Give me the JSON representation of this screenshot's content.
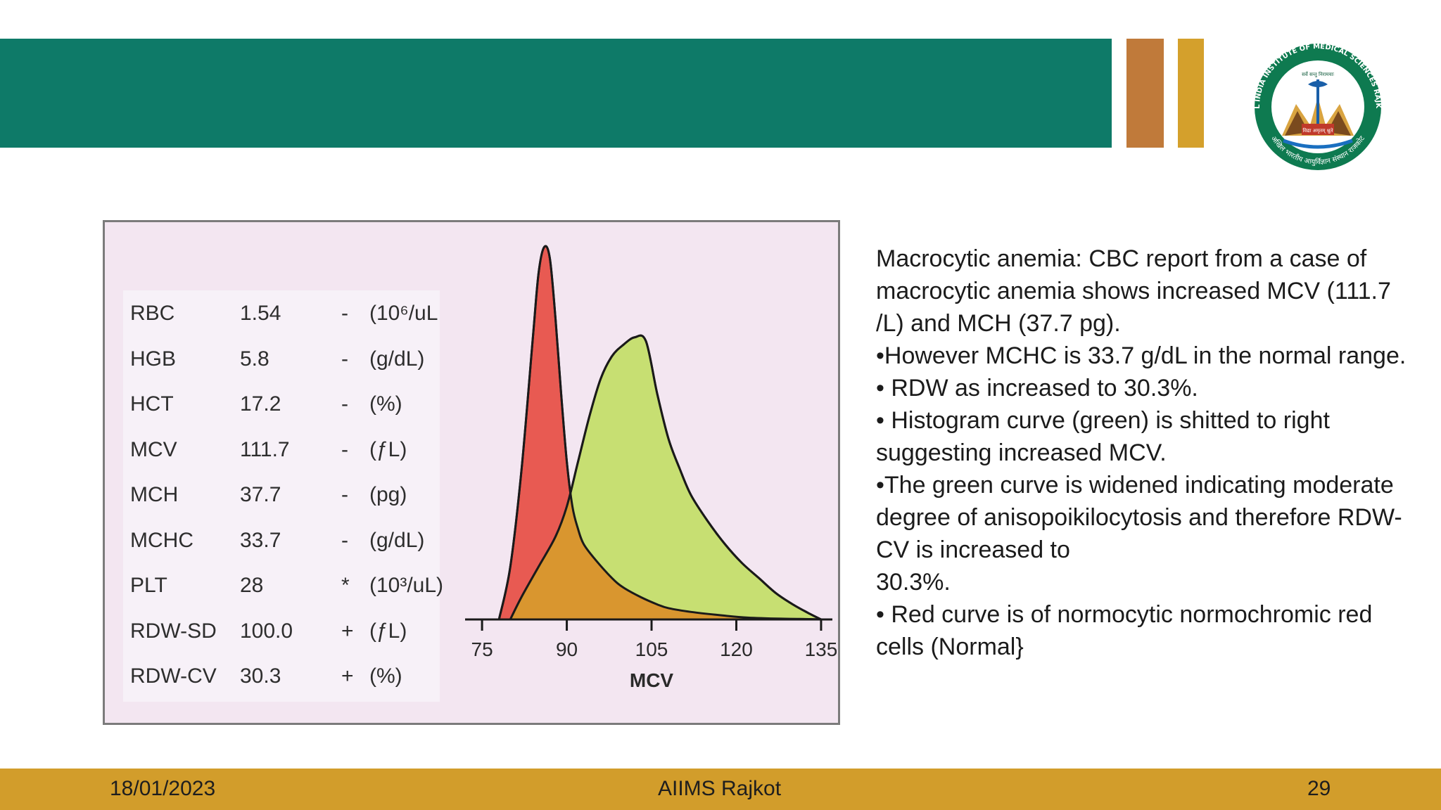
{
  "header": {
    "band_color": "#0e7a68",
    "accent_colors": [
      "#c07a3a",
      "#d4a02c"
    ],
    "logo": {
      "icon": "aiims-rajkot-seal-logo",
      "ring_text": "ALL INDIA INSTITUTE OF MEDICAL SCIENCES RAJKOT",
      "motto_top": "सर्वे सन्तु निरामयाः",
      "motto_book": "विद्या अमृतम् श्नुते",
      "hindi_name": "अखिल भारतीय आयुर्विज्ञान संस्थान राजकोट"
    }
  },
  "cbc_table": {
    "rows": [
      {
        "name": "RBC",
        "value": "1.54",
        "flag": "-",
        "unit": "(10⁶/uL"
      },
      {
        "name": "HGB",
        "value": "5.8",
        "flag": "-",
        "unit": "(g/dL)"
      },
      {
        "name": "HCT",
        "value": "17.2",
        "flag": "-",
        "unit": "(%)"
      },
      {
        "name": "MCV",
        "value": "111.7",
        "flag": "-",
        "unit": "(ƒL)"
      },
      {
        "name": "MCH",
        "value": "37.7",
        "flag": "-",
        "unit": "(pg)"
      },
      {
        "name": "MCHC",
        "value": "33.7",
        "flag": "-",
        "unit": "(g/dL)"
      },
      {
        "name": "PLT",
        "value": "28",
        "flag": "*",
        "unit": "(10³/uL)"
      },
      {
        "name": "RDW-SD",
        "value": "100.0",
        "flag": "+",
        "unit": "(ƒL)"
      },
      {
        "name": "RDW-CV",
        "value": "30.3",
        "flag": "+",
        "unit": "(%)"
      }
    ]
  },
  "chart_data": {
    "type": "area",
    "title": "",
    "xlabel": "MCV",
    "ylabel": "",
    "x_ticks": [
      75,
      90,
      105,
      120,
      135
    ],
    "xlim": [
      72,
      137
    ],
    "ylim": [
      0,
      100
    ],
    "grid": false,
    "series": [
      {
        "color": "#e85a52",
        "x": [
          78,
          80,
          82,
          84,
          85,
          86,
          87,
          88,
          89,
          90,
          91,
          92,
          93,
          95,
          98,
          100,
          103,
          106,
          108,
          112,
          118,
          122,
          128,
          133,
          135
        ],
        "y": [
          0,
          14,
          40,
          75,
          92,
          99,
          96,
          80,
          60,
          42,
          30,
          24,
          20,
          16,
          11,
          8.5,
          6,
          4,
          3,
          2,
          1,
          0.5,
          0.2,
          0.1,
          0
        ]
      },
      {
        "color": "#c7df72",
        "x": [
          80,
          82,
          85,
          88,
          90,
          92,
          94,
          96,
          98,
          100,
          102,
          104,
          106,
          108,
          110,
          112,
          115,
          118,
          121,
          124,
          127,
          130,
          133,
          135
        ],
        "y": [
          0,
          6,
          14,
          22,
          30,
          42,
          54,
          64,
          70,
          73,
          75,
          74,
          60,
          48,
          40,
          33,
          26,
          20,
          15,
          11,
          7,
          4,
          1.5,
          0
        ]
      }
    ],
    "overlap_color": "#d9962f"
  },
  "description": {
    "lines": [
      "Macrocytic anemia: CBC report from a case of macrocytic anemia shows increased MCV (111.7 /L) and MCH (37.7 pg).",
      "•However MCHC is 33.7 g/dL in the normal range.",
      "• RDW as increased to 30.3%.",
      "• Histogram curve (green) is shitted to right suggesting increased MCV.",
      "•The green curve is widened indicating moderate degree of anisopoikilocytosis and therefore RDW-CV is increased to",
      "30.3%.",
      "• Red curve is of normocytic normochromic red cells (Normal}"
    ]
  },
  "footer": {
    "date": "18/01/2023",
    "institute": "AIIMS Rajkot",
    "page_number": "29",
    "color": "#d29d2b"
  }
}
